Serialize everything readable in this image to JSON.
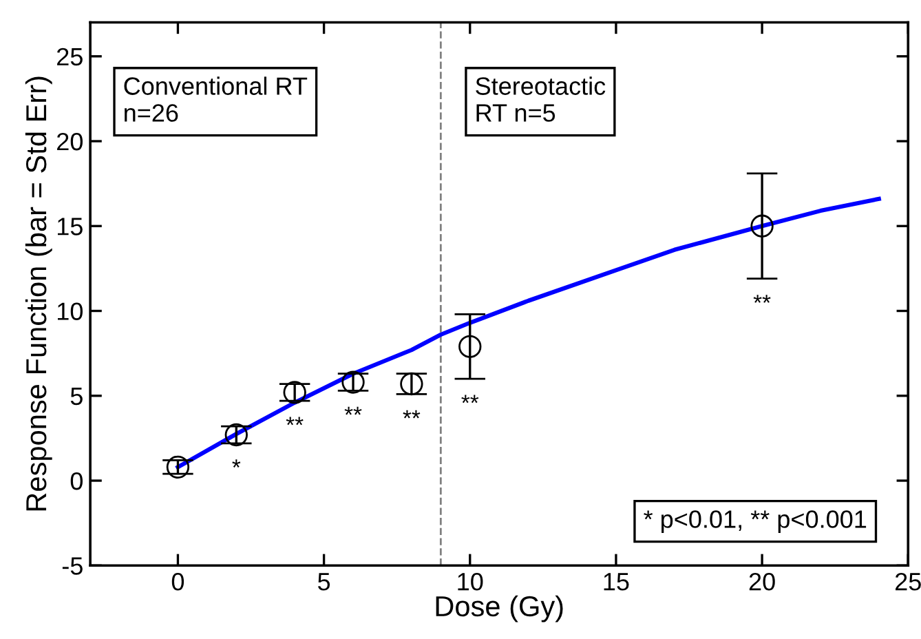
{
  "chart_data": {
    "type": "scatter",
    "xlabel": "Dose (Gy)",
    "ylabel": "Response Function (bar = Std Err)",
    "xlim": [
      -3,
      25
    ],
    "ylim": [
      -5,
      27
    ],
    "xticks": [
      0,
      5,
      10,
      15,
      20,
      25
    ],
    "yticks": [
      -5,
      0,
      5,
      10,
      15,
      20,
      25
    ],
    "grid": false,
    "legend": false,
    "series": [
      {
        "marker": "circle",
        "color": "#000000",
        "x": [
          0,
          2,
          4,
          6,
          8,
          10,
          20
        ],
        "values": [
          0.8,
          2.7,
          5.2,
          5.8,
          5.7,
          7.9,
          15.0
        ],
        "errors": [
          0.4,
          0.5,
          0.5,
          0.5,
          0.6,
          1.9,
          3.1
        ]
      },
      {
        "type": "line",
        "marker": "none",
        "line_style": "solid",
        "color": "#0000ff",
        "x": [
          0,
          2,
          4,
          6,
          8,
          9,
          10,
          12,
          15,
          17,
          20,
          22,
          24
        ],
        "values": [
          0.8,
          2.75,
          4.6,
          6.3,
          7.7,
          8.6,
          9.3,
          10.6,
          12.4,
          13.6,
          15.0,
          15.9,
          16.6
        ]
      }
    ],
    "ref_lines": [
      {
        "axis": "x",
        "value": 9,
        "color": "#808080",
        "line_style": "dashed"
      }
    ],
    "annotations": [
      "Conventional RT\nn=26",
      "Stereotactic\nRT n=5",
      "* p<0.01, ** p<0.001",
      "*",
      "**",
      "**",
      "**",
      "**",
      "**"
    ]
  }
}
